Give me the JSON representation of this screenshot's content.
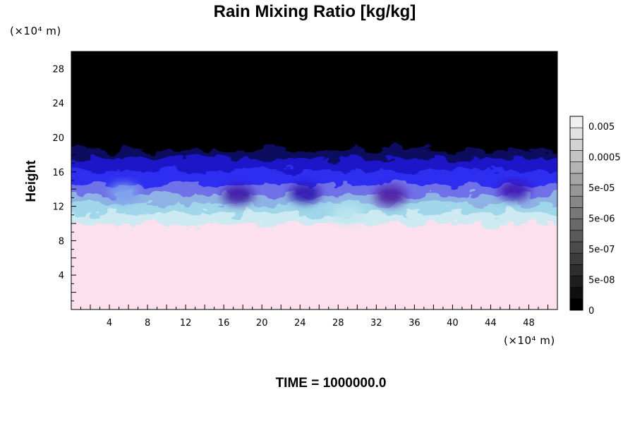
{
  "chart_data": {
    "type": "heatmap",
    "title": "Rain Mixing Ratio [kg/kg]",
    "ylabel": "Height",
    "xlabel": "",
    "x_unit": "(×10⁴ m)",
    "y_unit": "(×10⁴ m)",
    "x_ticks": [
      4,
      8,
      12,
      16,
      20,
      24,
      28,
      32,
      36,
      40,
      44,
      48
    ],
    "y_ticks": [
      4,
      8,
      12,
      16,
      20,
      24,
      28
    ],
    "xlim": [
      0,
      51
    ],
    "ylim": [
      0,
      30
    ],
    "colorbar": {
      "labels": [
        "0.005",
        "0.0005",
        "5e-05",
        "5e-06",
        "5e-07",
        "5e-08",
        "0"
      ],
      "levels": 17
    },
    "layers": [
      {
        "from": 0,
        "to": 10,
        "color": "#fde0ee"
      },
      {
        "from": 10,
        "to": 11.3,
        "color": "#cdeaf2"
      },
      {
        "from": 11.3,
        "to": 12.3,
        "color": "#9fd6ea"
      },
      {
        "from": 12.3,
        "to": 13.4,
        "color": "#8fb2e4"
      },
      {
        "from": 13.4,
        "to": 14.6,
        "color": "#6f6fe8"
      },
      {
        "from": 14.6,
        "to": 16.2,
        "color": "#2d2df0"
      },
      {
        "from": 16.2,
        "to": 17.6,
        "color": "#1a16c8"
      },
      {
        "from": 17.6,
        "to": 18.6,
        "color": "#0a0860"
      },
      {
        "from": 18.6,
        "to": 30,
        "color": "#000000"
      }
    ],
    "features": [
      {
        "x": 17.5,
        "y": 13.3,
        "color": "#3a0ea0"
      },
      {
        "x": 24.5,
        "y": 13.5,
        "color": "#2a0ea8"
      },
      {
        "x": 33.5,
        "y": 13.2,
        "color": "#4a0c9c"
      },
      {
        "x": 46.5,
        "y": 13.8,
        "color": "#3a12b0"
      },
      {
        "x": 5.5,
        "y": 13.6,
        "color": "#7aa0ee"
      },
      {
        "x": 29.0,
        "y": 11.0,
        "color": "#bfe8ee"
      }
    ]
  },
  "footer": {
    "time_label": "TIME = 1000000.0"
  }
}
